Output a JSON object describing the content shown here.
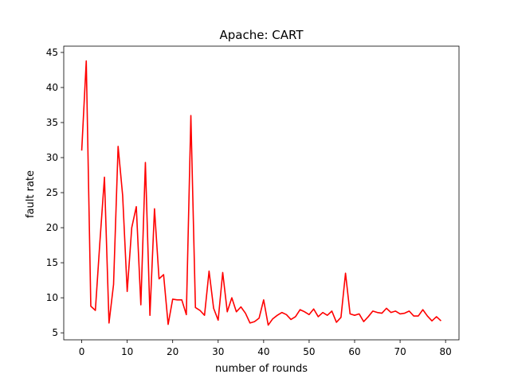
{
  "chart_data": {
    "type": "line",
    "title": "Apache: CART",
    "xlabel": "number of rounds",
    "ylabel": "fault rate",
    "xlim": [
      -3.95,
      82.95
    ],
    "ylim": [
      4.0,
      45.9
    ],
    "xticks": [
      0,
      10,
      20,
      30,
      40,
      50,
      60,
      70,
      80
    ],
    "yticks": [
      5,
      10,
      15,
      20,
      25,
      30,
      35,
      40,
      45
    ],
    "grid": false,
    "series": [
      {
        "color": "#ff0000",
        "x": [
          0,
          1,
          2,
          3,
          4,
          5,
          6,
          7,
          8,
          9,
          10,
          11,
          12,
          13,
          14,
          15,
          16,
          17,
          18,
          19,
          20,
          21,
          22,
          23,
          24,
          25,
          26,
          27,
          28,
          29,
          30,
          31,
          32,
          33,
          34,
          35,
          36,
          37,
          38,
          39,
          40,
          41,
          42,
          43,
          44,
          45,
          46,
          47,
          48,
          49,
          50,
          51,
          52,
          53,
          54,
          55,
          56,
          57,
          58,
          59,
          60,
          61,
          62,
          63,
          64,
          65,
          66,
          67,
          68,
          69,
          70,
          71,
          72,
          73,
          74,
          75,
          76,
          77,
          78,
          79
        ],
        "y": [
          31.0,
          43.8,
          8.8,
          8.2,
          18.0,
          27.2,
          6.4,
          11.9,
          31.6,
          24.6,
          10.9,
          20.0,
          23.0,
          9.0,
          29.3,
          7.5,
          22.7,
          12.7,
          13.3,
          6.2,
          9.8,
          9.7,
          9.7,
          7.6,
          36.0,
          8.6,
          8.2,
          7.5,
          13.8,
          8.5,
          6.8,
          13.6,
          8.0,
          10.0,
          8.0,
          8.7,
          7.8,
          6.4,
          6.6,
          7.1,
          9.7,
          6.1,
          7.0,
          7.5,
          7.9,
          7.6,
          6.9,
          7.3,
          8.3,
          8.0,
          7.6,
          8.4,
          7.3,
          7.9,
          7.5,
          8.1,
          6.5,
          7.2,
          13.5,
          7.7,
          7.5,
          7.7,
          6.6,
          7.3,
          8.1,
          7.9,
          7.8,
          8.5,
          7.9,
          8.1,
          7.7,
          7.8,
          8.1,
          7.4,
          7.4,
          8.3,
          7.4,
          6.7,
          7.3,
          6.7
        ]
      }
    ]
  }
}
